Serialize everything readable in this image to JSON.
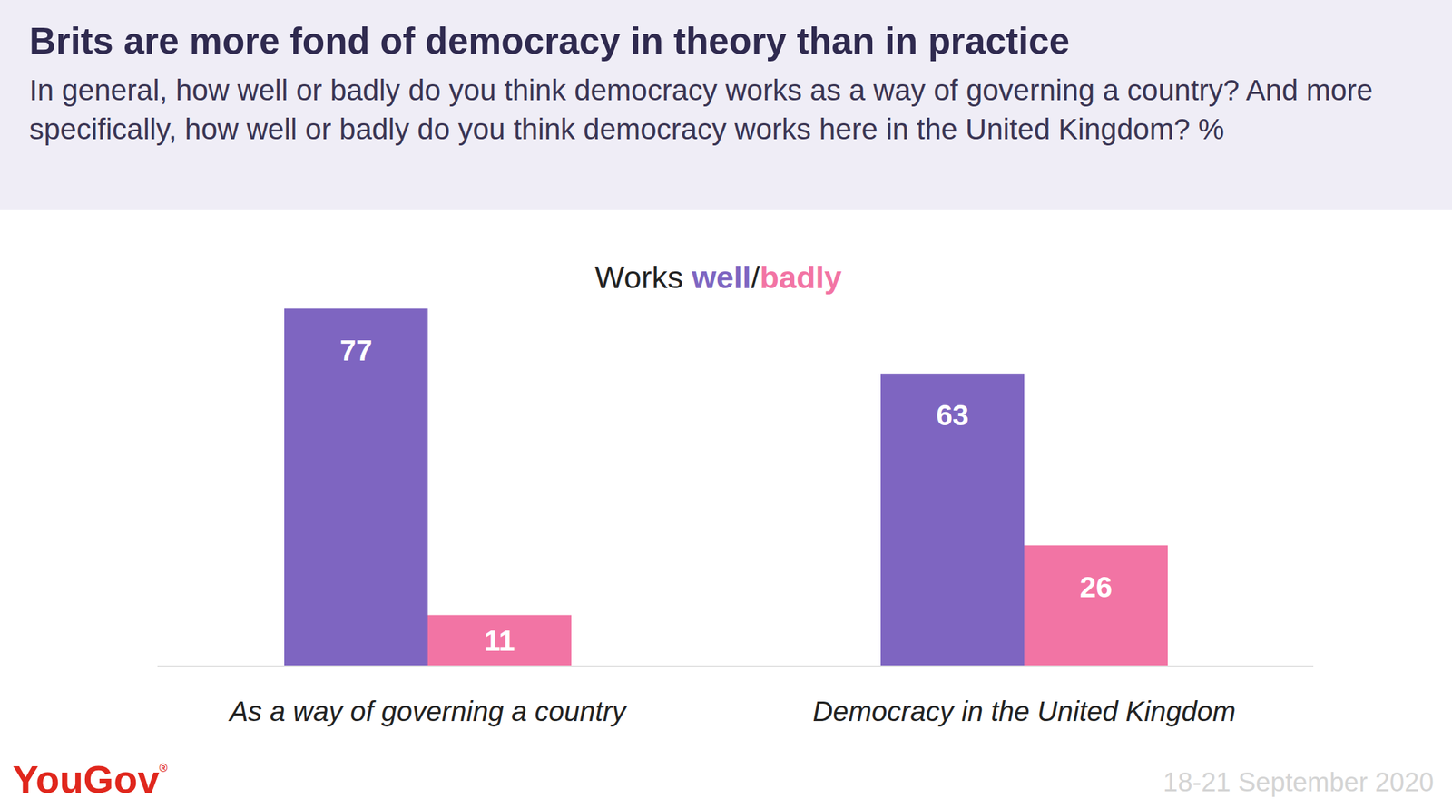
{
  "chart_data": {
    "type": "bar",
    "title": "Brits are more fond of democracy in theory than in practice",
    "subtitle": "In general, how well or badly do you think democracy works as a way of governing a country? And more specifically, how well or badly do you think democracy works here in the United Kingdom? %",
    "legend_title": "Works",
    "legend_separator": "/",
    "categories": [
      "As a way of governing a country",
      "Democracy in the United Kingdom"
    ],
    "series": [
      {
        "name": "well",
        "color": "#7e65c1",
        "values": [
          77,
          63
        ]
      },
      {
        "name": "badly",
        "color": "#f274a4",
        "values": [
          11,
          26
        ]
      }
    ],
    "ylim": [
      0,
      100
    ],
    "grid": false,
    "data_labels": true,
    "tick_labels": "x",
    "source": "YouGov",
    "source_mark": "®",
    "date": "18-21 September 2020"
  }
}
